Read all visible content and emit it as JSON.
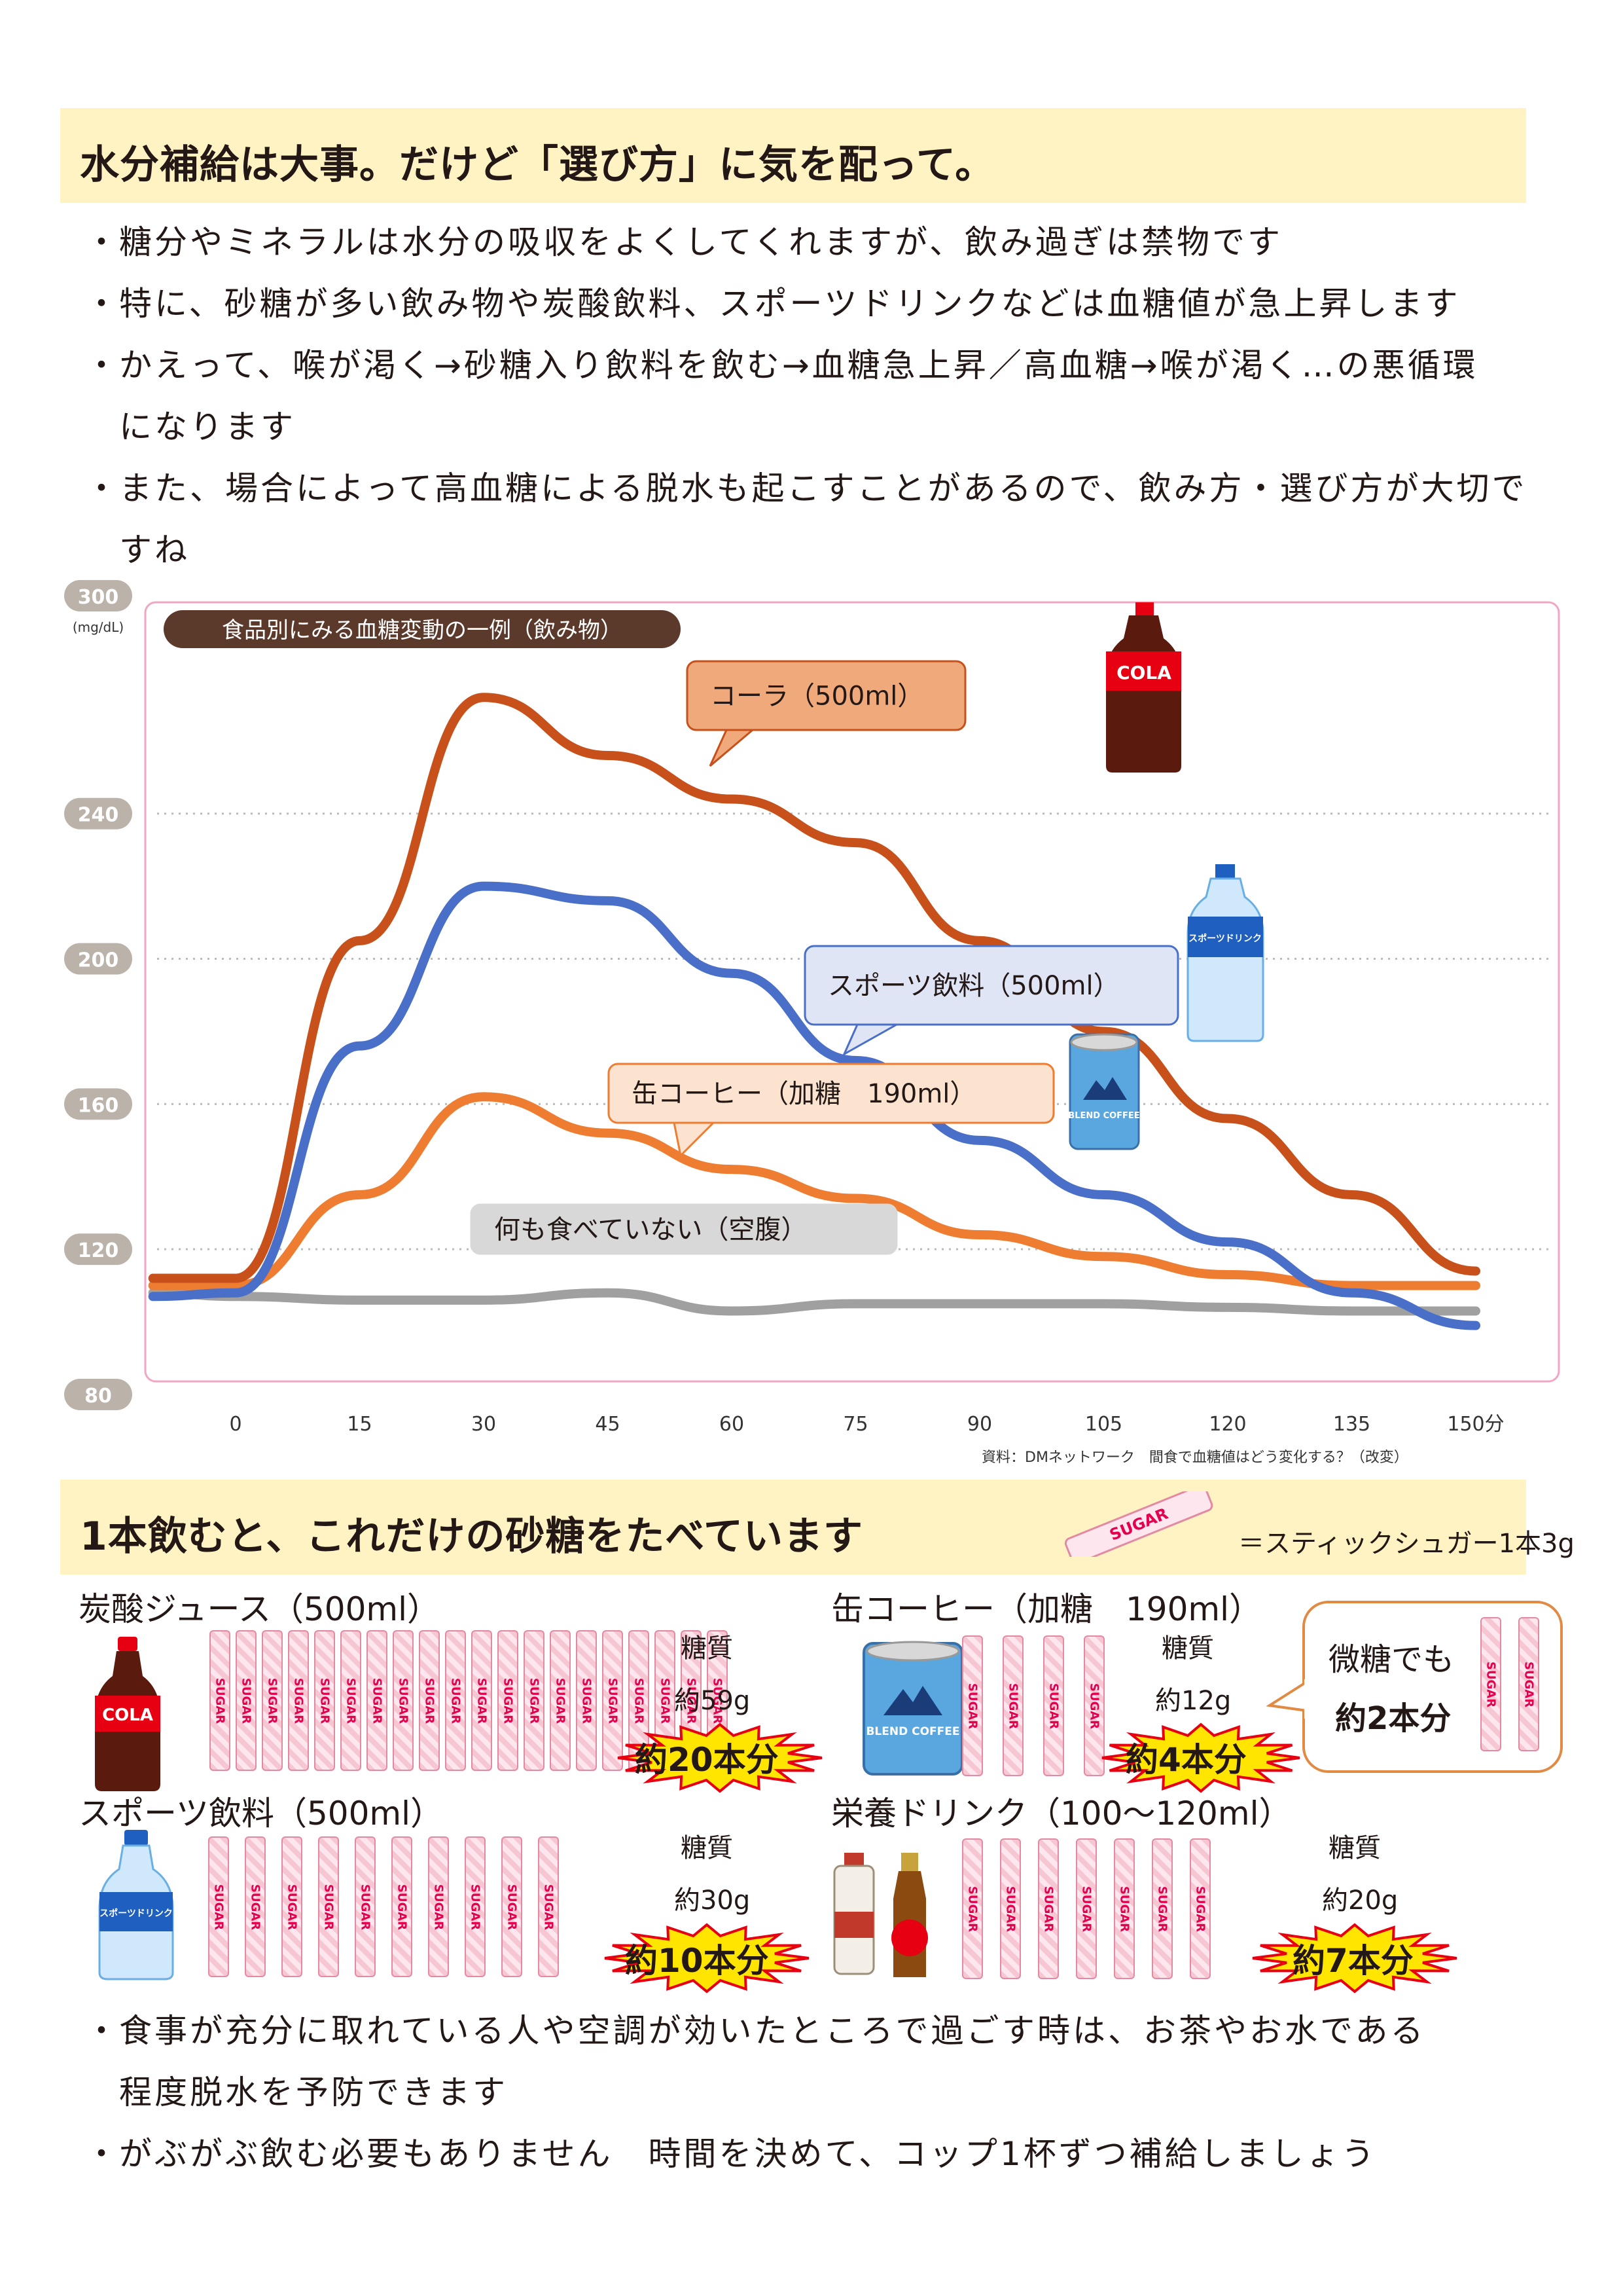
{
  "headline": "水分補給は大事。だけど「選び方」に気を配って。",
  "intro_bullets": [
    "糖分やミネラルは水分の吸収をよくしてくれますが、飲み過ぎは禁物です",
    "特に、砂糖が多い飲み物や炭酸飲料、スポーツドリンクなどは血糖値が急上昇します",
    "かえって、喉が渇く→砂糖入り飲料を飲む→血糖急上昇／高血糖→喉が渇く…の悪循環になります",
    "また、場合によって高血糖による脱水も起こすことがあるので、飲み方・選び方が大切ですね"
  ],
  "chart_data": {
    "type": "line",
    "title": "食品別にみる血糖変動の一例（飲み物）",
    "y_unit": "(mg/dL)",
    "ylim": [
      80,
      300
    ],
    "y_ticks": [
      "300",
      "240",
      "200",
      "160",
      "120",
      "80"
    ],
    "x": [
      -10,
      0,
      15,
      30,
      45,
      60,
      75,
      90,
      105,
      120,
      135,
      150
    ],
    "x_ticks": [
      "0",
      "15",
      "30",
      "45",
      "60",
      "75",
      "90",
      "105",
      "120",
      "135",
      "150分"
    ],
    "grid": "dotted horizontal",
    "series": [
      {
        "name": "コーラ（500ml）",
        "color": "#c8501a",
        "values": [
          112,
          112,
          205,
          272,
          256,
          244,
          232,
          205,
          180,
          156,
          135,
          114
        ]
      },
      {
        "name": "スポーツ飲料（500ml）",
        "color": "#4a6fc9",
        "values": [
          107,
          108,
          176,
          220,
          216,
          196,
          172,
          150,
          135,
          122,
          108,
          99
        ]
      },
      {
        "name": "缶コーヒー（加糖　190ml）",
        "color": "#ee7d31",
        "values": [
          110,
          110,
          135,
          162,
          152,
          142,
          134,
          124,
          118,
          113,
          110,
          110
        ]
      },
      {
        "name": "何も食べていない（空腹）",
        "color": "#a0a0a0",
        "values": [
          108,
          107,
          106,
          106,
          108,
          103,
          105,
          105,
          105,
          104,
          103,
          103
        ]
      }
    ]
  },
  "source": "資料：DMネットワーク　間食で血糖値はどう変化する？（改変）",
  "section2": {
    "title": "1本飲むと、これだけの砂糖をたべています",
    "stick_word": "SUGAR",
    "stick_note": "＝スティックシュガー1本3g"
  },
  "drinks": [
    {
      "title": "炭酸ジュース（500ml）",
      "sugar_label": "糖質",
      "sugar": "約59g",
      "count_text": "約20本分",
      "sticks": 20
    },
    {
      "title": "缶コーヒー（加糖　190ml）",
      "sugar_label": "糖質",
      "sugar": "約12g",
      "count_text": "約4本分",
      "sticks": 4
    },
    {
      "title": "スポーツ飲料（500ml）",
      "sugar_label": "糖質",
      "sugar": "約30g",
      "count_text": "約10本分",
      "sticks": 10
    },
    {
      "title": "栄養ドリンク（100〜120ml）",
      "sugar_label": "糖質",
      "sugar": "約20g",
      "count_text": "約7本分",
      "sticks": 7
    }
  ],
  "bubble": {
    "line1": "微糖でも",
    "line2": "約2本分",
    "sticks": 2
  },
  "icons": {
    "cola": "cola-bottle-icon",
    "sports": "sports-drink-bottle-icon",
    "coffee": "coffee-can-icon",
    "energy": "energy-drink-bottles-icon"
  },
  "cola_label": "COLA",
  "sports_label": "スポーツドリンク",
  "coffee_label": "BLEND COFFEE",
  "colors": {
    "banner": "#fff3c4",
    "sugar_burst": "#ffe500",
    "burst_edge": "#e60012",
    "chart_frame": "#f3a6c4"
  },
  "outro_bullets": [
    "食事が充分に取れている人や空調が効いたところで過ごす時は、お茶やお水である程度脱水を予防できます",
    "がぶがぶ飲む必要もありません　時間を決めて、コップ1杯ずつ補給しましょう"
  ]
}
